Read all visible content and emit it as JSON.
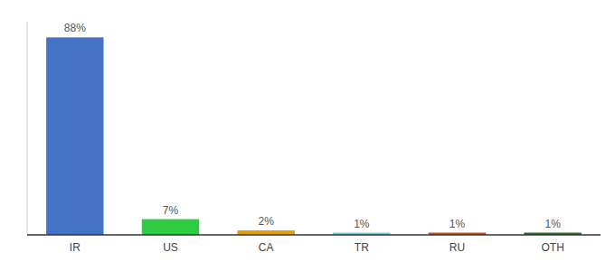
{
  "chart_data": {
    "type": "bar",
    "categories": [
      "IR",
      "US",
      "CA",
      "TR",
      "RU",
      "OTH"
    ],
    "values": [
      88,
      7,
      2,
      1,
      1,
      1
    ],
    "value_labels": [
      "88%",
      "7%",
      "2%",
      "1%",
      "1%",
      "1%"
    ],
    "data_labels": true,
    "colors": [
      "#4472c4",
      "#2ecc40",
      "#e6a000",
      "#7ec8e3",
      "#b5541c",
      "#2d6a2d"
    ],
    "ylim": [
      0,
      95
    ],
    "tick_labels": "x",
    "grid": false
  }
}
